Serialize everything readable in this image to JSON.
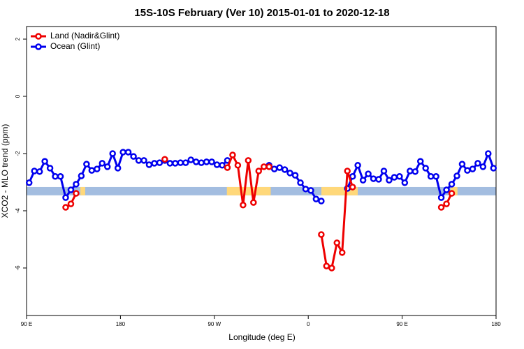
{
  "chart_data": {
    "type": "line",
    "title": "15S-10S February (Ver 10)   2015-01-01 to 2020-12-18",
    "x_label": "Longitude (deg E)",
    "y_label": "XCO2 - MLO trend (ppm)",
    "legend_position": "top-left",
    "xlim": [
      90,
      540
    ],
    "xticks": [
      {
        "value": 90,
        "label": "90 E"
      },
      180,
      {
        "value": 270,
        "label": "90 W"
      },
      {
        "value": 360,
        "label": "0"
      },
      {
        "value": 450,
        "label": "90 E"
      },
      {
        "value": 540,
        "label": "180"
      }
    ],
    "ylim": [
      -7.66,
      2.44
    ],
    "yticks": [
      2,
      0,
      -2,
      -4,
      -6
    ],
    "x": [
      92.5,
      97.5,
      102.5,
      107.5,
      112.5,
      117.5,
      122.5,
      127.5,
      132.5,
      137.5,
      142.5,
      147.5,
      152.5,
      157.5,
      162.5,
      167.5,
      172.5,
      177.5,
      182.5,
      187.5,
      192.5,
      197.5,
      202.5,
      207.5,
      212.5,
      217.5,
      222.5,
      227.5,
      232.5,
      237.5,
      242.5,
      247.5,
      252.5,
      257.5,
      262.5,
      267.5,
      272.5,
      277.5,
      282.5,
      287.5,
      292.5,
      297.5,
      302.5,
      307.5,
      312.5,
      317.5,
      322.5,
      327.5,
      332.5,
      337.5,
      342.5,
      347.5,
      352.5,
      357.5,
      362.5,
      367.5,
      372.5,
      377.5,
      382.5,
      387.5,
      392.5,
      397.5,
      402.5,
      407.5,
      412.5,
      417.5,
      422.5,
      427.5,
      432.5,
      437.5,
      442.5,
      447.5,
      452.5,
      457.5,
      462.5,
      467.5,
      472.5,
      477.5,
      482.5,
      487.5,
      492.5,
      497.5,
      502.5,
      507.5,
      512.5,
      517.5,
      522.5,
      527.5,
      532.5,
      537.5
    ],
    "series": [
      {
        "name": "Ocean (Glint)",
        "color": "#0000ee",
        "values": [
          -3.02,
          -2.61,
          -2.63,
          -2.27,
          -2.51,
          -2.8,
          -2.8,
          -3.54,
          -3.27,
          -3.07,
          -2.78,
          -2.37,
          -2.59,
          -2.54,
          -2.34,
          -2.46,
          -2.0,
          -2.51,
          -1.95,
          -1.95,
          -2.1,
          -2.24,
          -2.24,
          -2.39,
          -2.34,
          -2.32,
          -2.24,
          -2.34,
          -2.34,
          -2.32,
          -2.32,
          -2.22,
          -2.29,
          -2.32,
          -2.29,
          -2.29,
          -2.39,
          -2.41,
          -2.24,
          null,
          null,
          null,
          null,
          null,
          null,
          null,
          -2.41,
          -2.54,
          -2.49,
          -2.56,
          -2.68,
          -2.76,
          -3.02,
          -3.24,
          -3.29,
          -3.59,
          -3.66,
          null,
          null,
          null,
          null,
          -3.22,
          -2.8,
          -2.41,
          -2.93,
          -2.71,
          -2.88,
          -2.9,
          -2.61,
          -2.93,
          -2.83,
          -2.8,
          -3.02,
          -2.61,
          -2.63,
          -2.27,
          -2.51,
          -2.8,
          -2.8,
          -3.54,
          -3.27,
          -3.07,
          -2.78,
          -2.37,
          -2.59,
          -2.54,
          -2.34,
          -2.46,
          -2.0,
          -2.51
        ]
      },
      {
        "name": "Land (Nadir&Glint)",
        "color": "#ee0000",
        "values": [
          null,
          null,
          null,
          null,
          null,
          null,
          null,
          -3.88,
          -3.76,
          -3.39,
          null,
          null,
          null,
          null,
          null,
          null,
          null,
          null,
          null,
          null,
          null,
          null,
          null,
          null,
          null,
          null,
          -2.2,
          null,
          null,
          null,
          null,
          null,
          null,
          null,
          null,
          null,
          null,
          null,
          -2.49,
          -2.05,
          -2.41,
          -3.8,
          -2.24,
          -3.71,
          -2.61,
          -2.46,
          -2.46,
          null,
          null,
          null,
          null,
          null,
          null,
          null,
          null,
          null,
          -4.83,
          -5.93,
          -6.0,
          -5.12,
          -5.46,
          -2.61,
          -3.17,
          null,
          null,
          null,
          null,
          null,
          null,
          null,
          null,
          null,
          null,
          null,
          null,
          null,
          null,
          null,
          null,
          -3.88,
          -3.76,
          -3.39,
          null,
          null,
          null,
          null,
          null,
          null,
          null,
          null
        ]
      }
    ],
    "mask": {
      "ylim": [
        -3.46,
        -3.17
      ],
      "color": "#a3bde0",
      "highlight_color": "#ffd87a",
      "highlights": [
        [
          141.6,
          146.2
        ],
        [
          282,
          324
        ],
        [
          372.6,
          407.4
        ],
        [
          496.5,
          503
        ]
      ]
    }
  }
}
